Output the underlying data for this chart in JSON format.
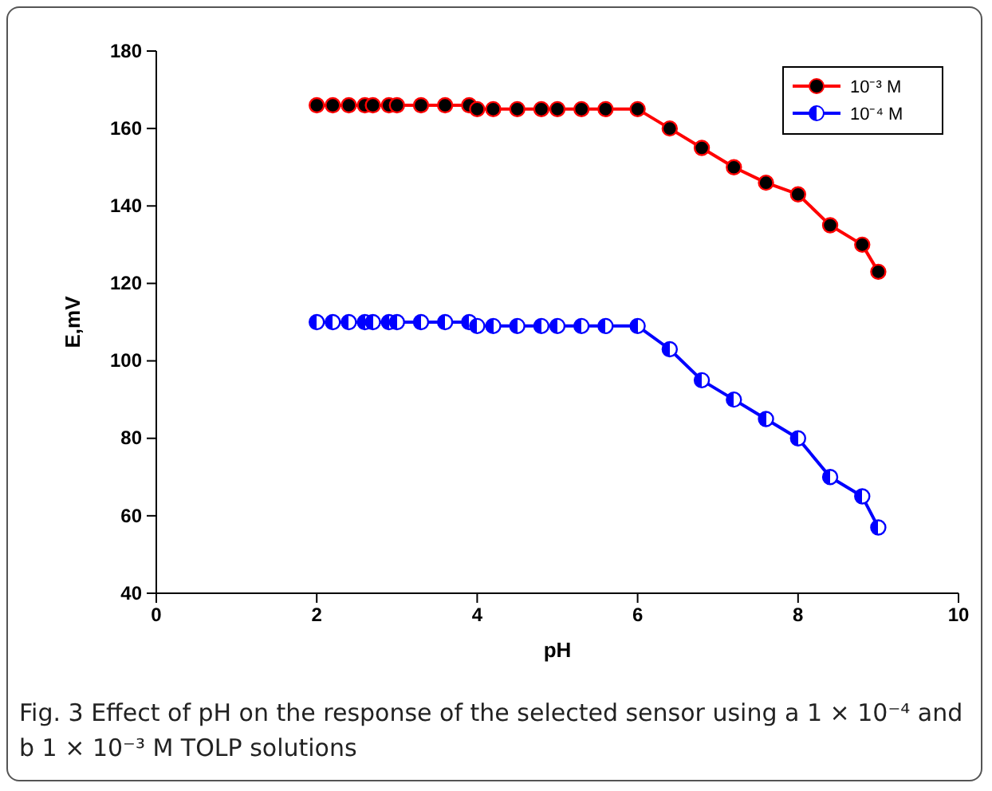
{
  "chart_data": {
    "type": "line",
    "xlabel": "pH",
    "ylabel": "E,mV",
    "x": [
      2.0,
      2.2,
      2.4,
      2.6,
      2.7,
      2.9,
      3.0,
      3.3,
      3.6,
      3.9,
      4.0,
      4.2,
      4.5,
      4.8,
      5.0,
      5.3,
      5.6,
      6.0,
      6.4,
      6.8,
      7.2,
      7.6,
      8.0,
      8.4,
      8.8,
      9.0
    ],
    "series": [
      {
        "name": "10⁻³ M",
        "color": "#ff0000",
        "values": [
          166,
          166,
          166,
          166,
          166,
          166,
          166,
          166,
          166,
          166,
          165,
          165,
          165,
          165,
          165,
          165,
          165,
          165,
          160,
          155,
          150,
          146,
          143,
          135,
          130,
          123
        ]
      },
      {
        "name": "10⁻⁴ M",
        "color": "#0000ff",
        "values": [
          110,
          110,
          110,
          110,
          110,
          110,
          110,
          110,
          110,
          110,
          109,
          109,
          109,
          109,
          109,
          109,
          109,
          109,
          103,
          95,
          90,
          85,
          80,
          70,
          65,
          57
        ]
      }
    ],
    "xlim": [
      0,
      10
    ],
    "xticks": [
      0,
      2,
      4,
      6,
      8,
      10
    ],
    "ylim": [
      40,
      180
    ],
    "yticks": [
      40,
      60,
      80,
      100,
      120,
      140,
      160,
      180
    ],
    "marker": "circle",
    "line_style": "solid",
    "legend": "top right",
    "grid": false,
    "annotations": [
      "Fig. 3  Effect of pH on the response of the selected sensor using a 1 × 10⁻⁴ and b 1 × 10⁻³ M TOLP solutions"
    ]
  }
}
